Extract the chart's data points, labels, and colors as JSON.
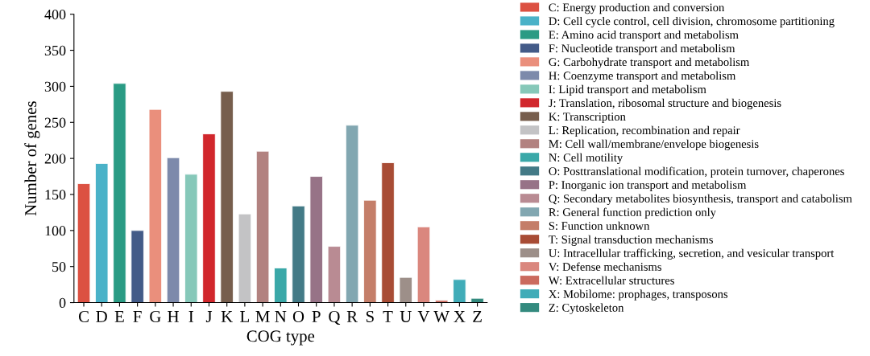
{
  "chart_data": {
    "type": "bar",
    "xlabel": "COG type",
    "ylabel": "Number of genes",
    "categories": [
      "C",
      "D",
      "E",
      "F",
      "G",
      "H",
      "I",
      "J",
      "K",
      "L",
      "M",
      "N",
      "O",
      "P",
      "Q",
      "R",
      "S",
      "T",
      "U",
      "V",
      "W",
      "X",
      "Z"
    ],
    "series": [
      {
        "name": "C: Energy production and conversion",
        "color": "#dc5142",
        "values": [
          165,
          null,
          null,
          null,
          null,
          null,
          null,
          null,
          null,
          null,
          null,
          null,
          null,
          null,
          null,
          null,
          null,
          null,
          null,
          null,
          null,
          null,
          null
        ]
      },
      {
        "name": "D: Cell cycle control, cell division, chromosome partitioning",
        "color": "#4ab2c8",
        "values": [
          null,
          193,
          null,
          null,
          null,
          null,
          null,
          null,
          null,
          null,
          null,
          null,
          null,
          null,
          null,
          null,
          null,
          null,
          null,
          null,
          null,
          null,
          null
        ]
      },
      {
        "name": "E: Amino acid transport and metabolism",
        "color": "#2a9b84",
        "values": [
          null,
          null,
          304,
          null,
          null,
          null,
          null,
          null,
          null,
          null,
          null,
          null,
          null,
          null,
          null,
          null,
          null,
          null,
          null,
          null,
          null,
          null,
          null
        ]
      },
      {
        "name": "F: Nucleotide transport and metabolism",
        "color": "#435b88",
        "values": [
          null,
          null,
          null,
          100,
          null,
          null,
          null,
          null,
          null,
          null,
          null,
          null,
          null,
          null,
          null,
          null,
          null,
          null,
          null,
          null,
          null,
          null,
          null
        ]
      },
      {
        "name": "G: Carbohydrate transport and metabolism",
        "color": "#ea8f7c",
        "values": [
          null,
          null,
          null,
          null,
          268,
          null,
          null,
          null,
          null,
          null,
          null,
          null,
          null,
          null,
          null,
          null,
          null,
          null,
          null,
          null,
          null,
          null,
          null
        ]
      },
      {
        "name": "H: Coenzyme transport and metabolism",
        "color": "#7d8aab",
        "values": [
          null,
          null,
          null,
          null,
          null,
          201,
          null,
          null,
          null,
          null,
          null,
          null,
          null,
          null,
          null,
          null,
          null,
          null,
          null,
          null,
          null,
          null,
          null
        ]
      },
      {
        "name": "I: Lipid transport and metabolism",
        "color": "#86c8b9",
        "values": [
          null,
          null,
          null,
          null,
          null,
          null,
          178,
          null,
          null,
          null,
          null,
          null,
          null,
          null,
          null,
          null,
          null,
          null,
          null,
          null,
          null,
          null,
          null
        ]
      },
      {
        "name": "J: Translation, ribosomal structure and biogenesis",
        "color": "#d1272c",
        "values": [
          null,
          null,
          null,
          null,
          null,
          null,
          null,
          234,
          null,
          null,
          null,
          null,
          null,
          null,
          null,
          null,
          null,
          null,
          null,
          null,
          null,
          null,
          null
        ]
      },
      {
        "name": "K: Transcription",
        "color": "#775e4d",
        "values": [
          null,
          null,
          null,
          null,
          null,
          null,
          null,
          null,
          293,
          null,
          null,
          null,
          null,
          null,
          null,
          null,
          null,
          null,
          null,
          null,
          null,
          null,
          null
        ]
      },
      {
        "name": "L: Replication, recombination and repair",
        "color": "#c3c3c5",
        "values": [
          null,
          null,
          null,
          null,
          null,
          null,
          null,
          null,
          null,
          123,
          null,
          null,
          null,
          null,
          null,
          null,
          null,
          null,
          null,
          null,
          null,
          null,
          null
        ]
      },
      {
        "name": "M: Cell wall/membrane/envelope biogenesis",
        "color": "#b28280",
        "values": [
          null,
          null,
          null,
          null,
          null,
          null,
          null,
          null,
          null,
          null,
          210,
          null,
          null,
          null,
          null,
          null,
          null,
          null,
          null,
          null,
          null,
          null,
          null
        ]
      },
      {
        "name": "N: Cell motility",
        "color": "#3aa8a8",
        "values": [
          null,
          null,
          null,
          null,
          null,
          null,
          null,
          null,
          null,
          null,
          null,
          48,
          null,
          null,
          null,
          null,
          null,
          null,
          null,
          null,
          null,
          null,
          null
        ]
      },
      {
        "name": "O: Posttranslational modification, protein turnover, chaperones",
        "color": "#437a86",
        "values": [
          null,
          null,
          null,
          null,
          null,
          null,
          null,
          null,
          null,
          null,
          null,
          null,
          134,
          null,
          null,
          null,
          null,
          null,
          null,
          null,
          null,
          null,
          null
        ]
      },
      {
        "name": "P: Inorganic ion transport and metabolism",
        "color": "#977387",
        "values": [
          null,
          null,
          null,
          null,
          null,
          null,
          null,
          null,
          null,
          null,
          null,
          null,
          null,
          175,
          null,
          null,
          null,
          null,
          null,
          null,
          null,
          null,
          null
        ]
      },
      {
        "name": "Q: Secondary metabolites biosynthesis, transport and catabolism",
        "color": "#b98b93",
        "values": [
          null,
          null,
          null,
          null,
          null,
          null,
          null,
          null,
          null,
          null,
          null,
          null,
          null,
          null,
          78,
          null,
          null,
          null,
          null,
          null,
          null,
          null,
          null
        ]
      },
      {
        "name": "R: General function prediction only",
        "color": "#82a7b1",
        "values": [
          null,
          null,
          null,
          null,
          null,
          null,
          null,
          null,
          null,
          null,
          null,
          null,
          null,
          null,
          null,
          246,
          null,
          null,
          null,
          null,
          null,
          null,
          null
        ]
      },
      {
        "name": "S: Function unknown",
        "color": "#c47e69",
        "values": [
          null,
          null,
          null,
          null,
          null,
          null,
          null,
          null,
          null,
          null,
          null,
          null,
          null,
          null,
          null,
          null,
          142,
          null,
          null,
          null,
          null,
          null,
          null
        ]
      },
      {
        "name": "T: Signal transduction mechanisms",
        "color": "#a84c35",
        "values": [
          null,
          null,
          null,
          null,
          null,
          null,
          null,
          null,
          null,
          null,
          null,
          null,
          null,
          null,
          null,
          null,
          null,
          194,
          null,
          null,
          null,
          null,
          null
        ]
      },
      {
        "name": "U: Intracellular trafficking, secretion, and vesicular transport",
        "color": "#9d8f89",
        "values": [
          null,
          null,
          null,
          null,
          null,
          null,
          null,
          null,
          null,
          null,
          null,
          null,
          null,
          null,
          null,
          null,
          null,
          null,
          35,
          null,
          null,
          null,
          null
        ]
      },
      {
        "name": "V: Defense mechanisms",
        "color": "#da877e",
        "values": [
          null,
          null,
          null,
          null,
          null,
          null,
          null,
          null,
          null,
          null,
          null,
          null,
          null,
          null,
          null,
          null,
          null,
          null,
          null,
          105,
          null,
          null,
          null
        ]
      },
      {
        "name": "W: Extracellular structures",
        "color": "#cb6a5e",
        "values": [
          null,
          null,
          null,
          null,
          null,
          null,
          null,
          null,
          null,
          null,
          null,
          null,
          null,
          null,
          null,
          null,
          null,
          null,
          null,
          null,
          3,
          null,
          null
        ]
      },
      {
        "name": "X: Mobilome: prophages, transposons",
        "color": "#40acb8",
        "values": [
          null,
          null,
          null,
          null,
          null,
          null,
          null,
          null,
          null,
          null,
          null,
          null,
          null,
          null,
          null,
          null,
          null,
          null,
          null,
          null,
          null,
          32,
          null
        ]
      },
      {
        "name": "Z: Cytoskeleton",
        "color": "#338a7e",
        "values": [
          null,
          null,
          null,
          null,
          null,
          null,
          null,
          null,
          null,
          null,
          null,
          null,
          null,
          null,
          null,
          null,
          null,
          null,
          null,
          null,
          null,
          null,
          6
        ]
      }
    ],
    "ylim": [
      0,
      400
    ],
    "yticks": [
      0,
      50,
      100,
      150,
      200,
      250,
      300,
      350,
      400
    ],
    "legend": "right"
  }
}
